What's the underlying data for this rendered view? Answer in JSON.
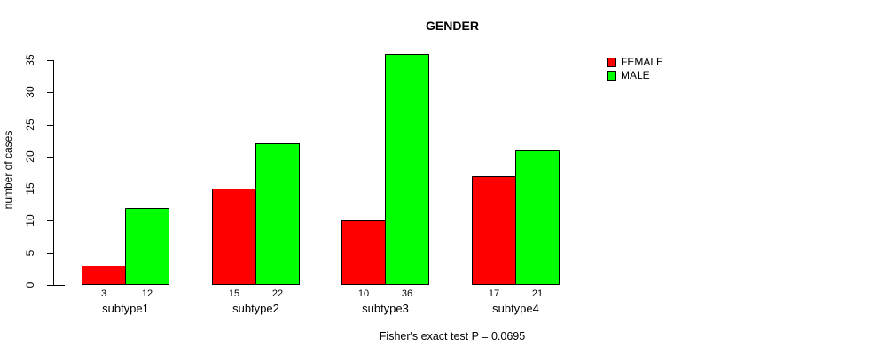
{
  "chart_data": {
    "type": "bar",
    "title": "GENDER",
    "ylabel": "number of cases",
    "xlabel": "",
    "categories": [
      "subtype1",
      "subtype2",
      "subtype3",
      "subtype4"
    ],
    "series": [
      {
        "name": "FEMALE",
        "color": "#ff0000",
        "values": [
          3,
          15,
          10,
          17
        ]
      },
      {
        "name": "MALE",
        "color": "#00ff00",
        "values": [
          12,
          22,
          36,
          21
        ]
      }
    ],
    "yticks": [
      0,
      5,
      10,
      15,
      20,
      25,
      30,
      35
    ],
    "ylim": [
      0,
      35
    ],
    "grid": false,
    "bar_value_labels": true,
    "legend_position": "top-right",
    "annotation": "Fisher's exact test P = 0.0695"
  }
}
